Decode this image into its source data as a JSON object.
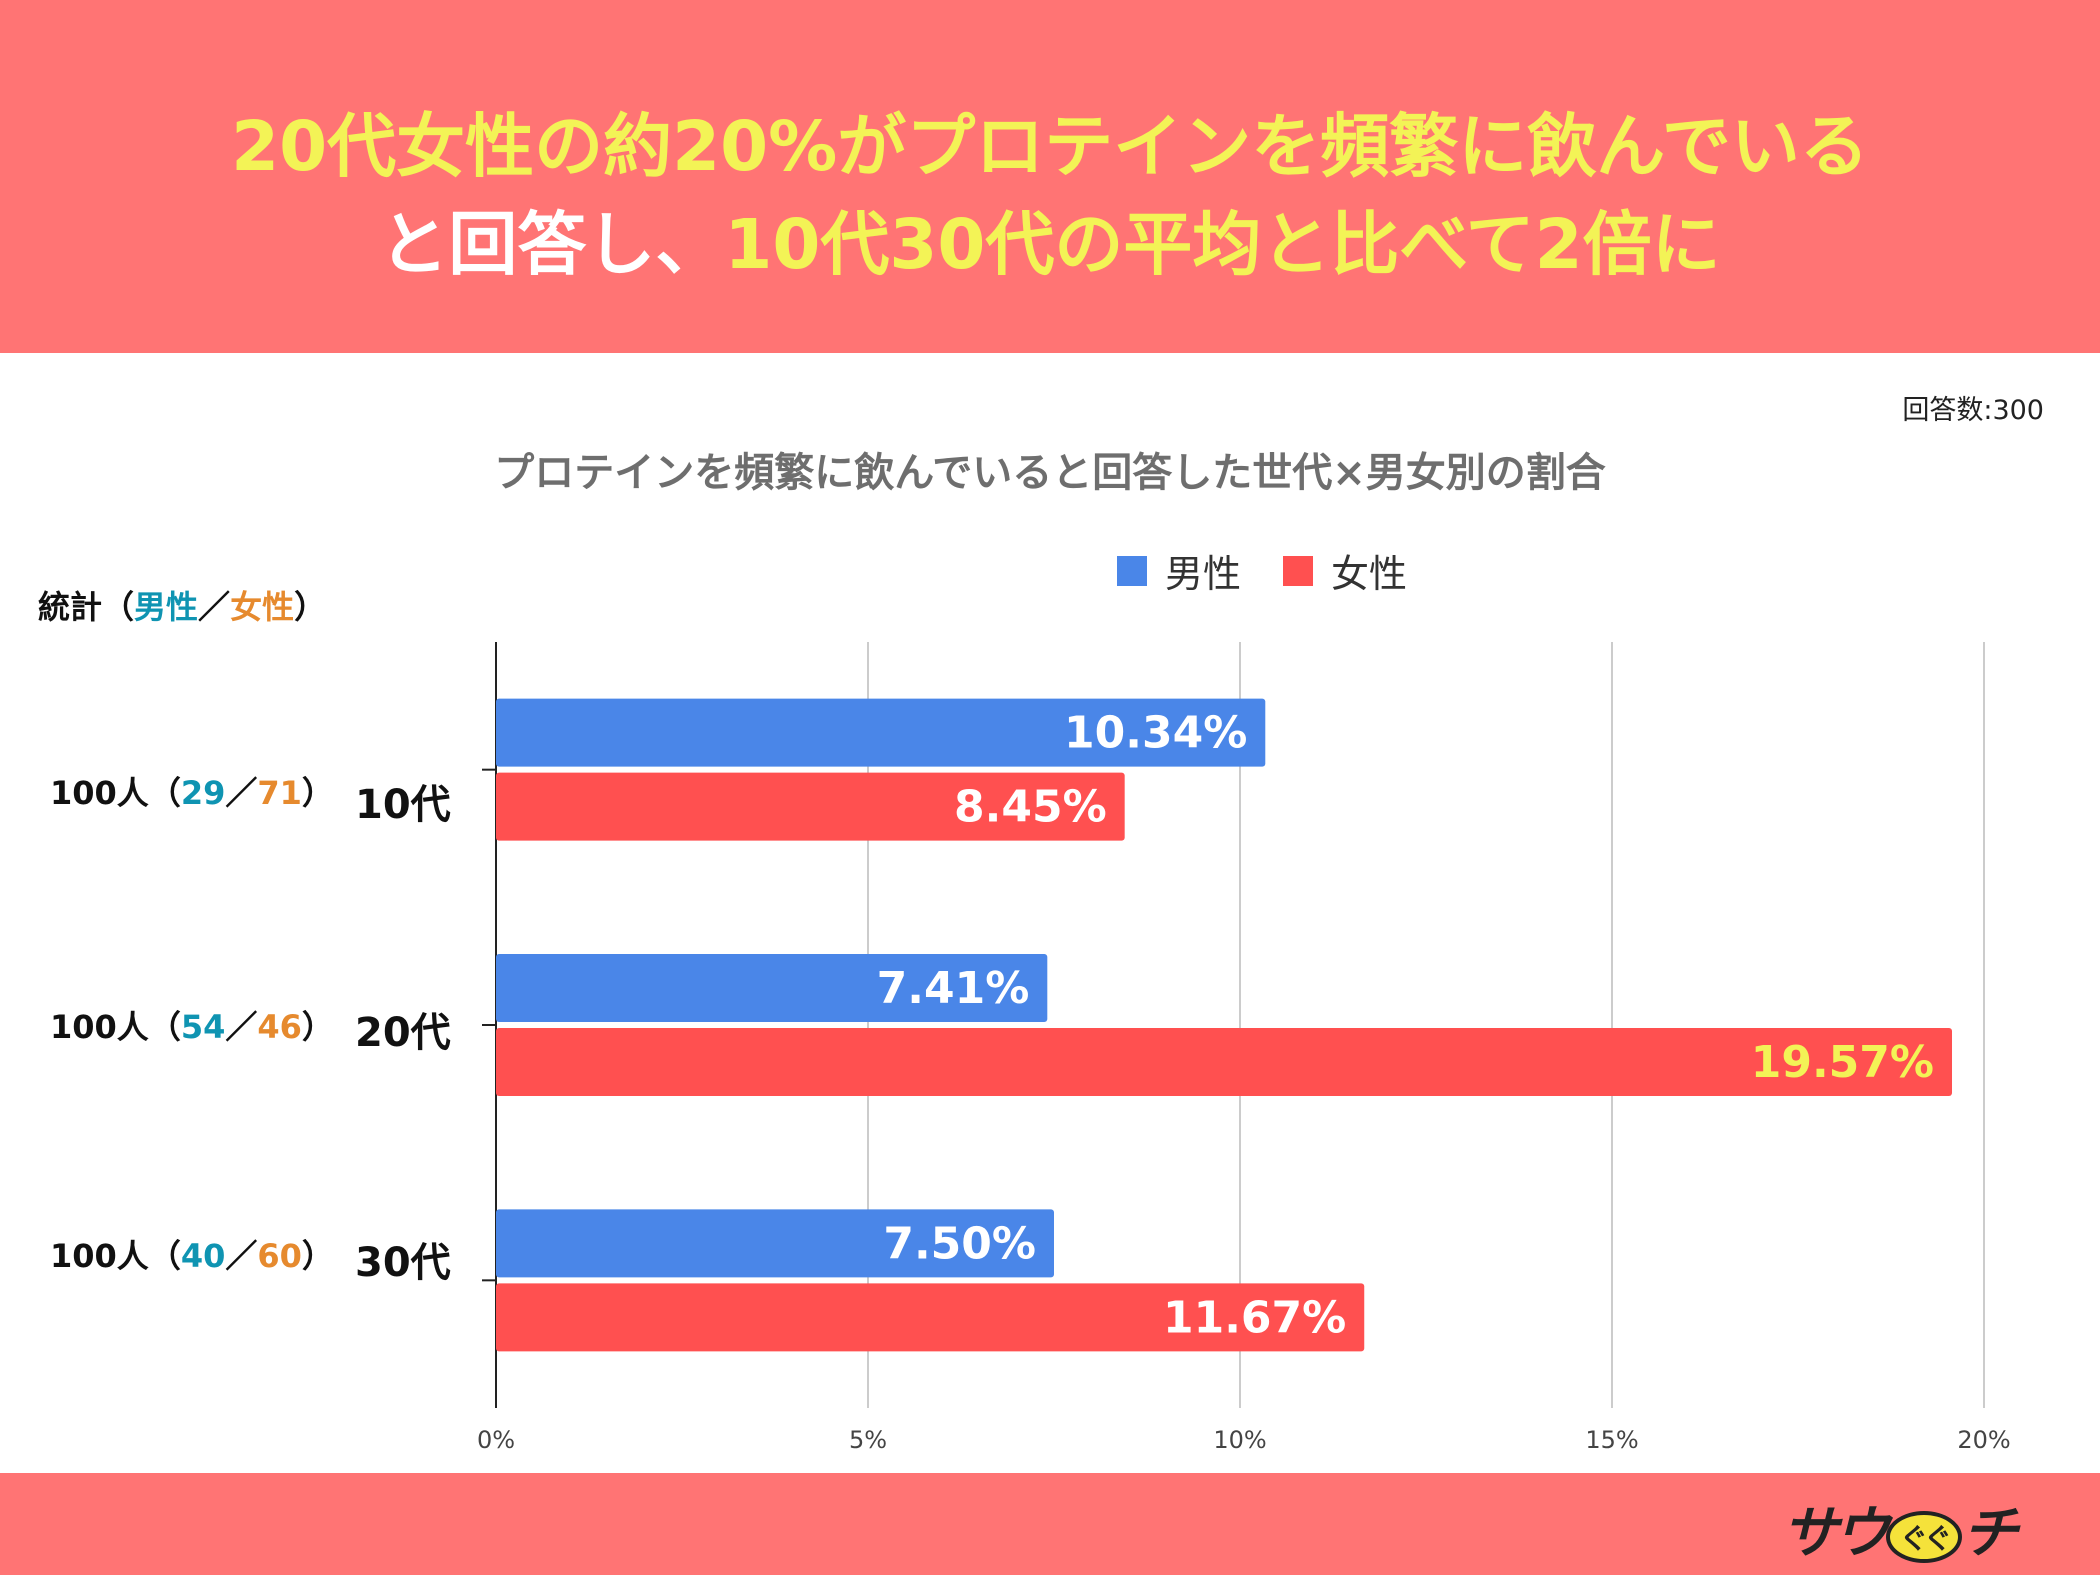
{
  "header": {
    "line1": "20代女性の約20%がプロテインを頻繁に飲んでいる",
    "line2_part1": "と回答し、",
    "line2_part2": "10代30代の平均と比べて2倍に"
  },
  "response_count": "回答数:300",
  "legend": {
    "male": "男性",
    "female": "女性"
  },
  "stats_header": {
    "label": "統計",
    "open": "（",
    "male": "男性",
    "slash": "／",
    "female": "女性",
    "close": "）"
  },
  "rows": [
    {
      "total": "100人",
      "male_n": "29",
      "female_n": "71",
      "category": "10代"
    },
    {
      "total": "100人",
      "male_n": "54",
      "female_n": "46",
      "category": "20代"
    },
    {
      "total": "100人",
      "male_n": "40",
      "female_n": "60",
      "category": "30代"
    }
  ],
  "colors": {
    "male": "#4a86e8",
    "female": "#ff5050",
    "highlight_label": "#f3f356",
    "header_bg": "#ff7474"
  },
  "logo": {
    "text_a": "サウ",
    "text_ball": "ぐぐ",
    "text_b": "チ"
  },
  "chart_data": {
    "type": "bar",
    "orientation": "horizontal",
    "title": "プロテインを頻繁に飲んでいると回答した世代×男女別の割合",
    "categories": [
      "10代",
      "20代",
      "30代"
    ],
    "series": [
      {
        "name": "男性",
        "values": [
          10.34,
          7.41,
          7.5
        ],
        "labels": [
          "10.34%",
          "7.41%",
          "7.50%"
        ]
      },
      {
        "name": "女性",
        "values": [
          8.45,
          19.57,
          11.67
        ],
        "labels": [
          "8.45%",
          "19.57%",
          "11.67%"
        ]
      }
    ],
    "xlim": [
      0,
      20
    ],
    "xticks": [
      {
        "value": 0,
        "label": "0%"
      },
      {
        "value": 5,
        "label": "5%"
      },
      {
        "value": 10,
        "label": "10%"
      },
      {
        "value": 15,
        "label": "15%"
      },
      {
        "value": 20,
        "label": "20%"
      }
    ],
    "grid": true,
    "legend": "top-center",
    "xlabel": "",
    "ylabel": ""
  }
}
